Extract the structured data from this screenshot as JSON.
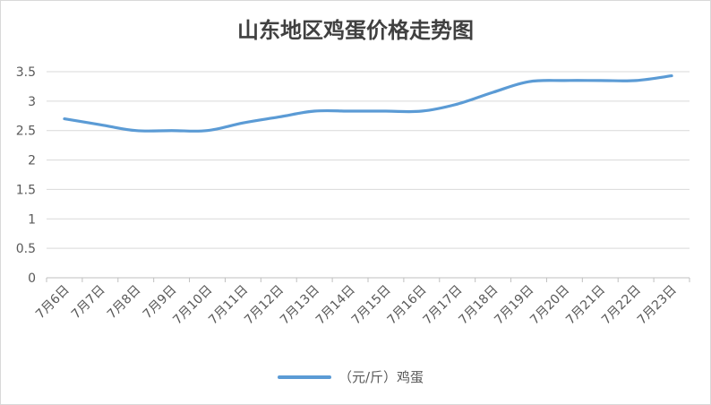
{
  "chart_data": {
    "type": "line",
    "title": "山东地区鸡蛋价格走势图",
    "categories": [
      "7月6日",
      "7月7日",
      "7月8日",
      "7月9日",
      "7月10日",
      "7月11日",
      "7月12日",
      "7月13日",
      "7月14日",
      "7月15日",
      "7月16日",
      "7月17日",
      "7月18日",
      "7月19日",
      "7月20日",
      "7月21日",
      "7月22日",
      "7月23日"
    ],
    "series": [
      {
        "name": "（元/斤）鸡蛋",
        "values": [
          2.7,
          2.6,
          2.5,
          2.5,
          2.5,
          2.63,
          2.73,
          2.83,
          2.83,
          2.83,
          2.83,
          2.95,
          3.15,
          3.33,
          3.35,
          3.35,
          3.35,
          3.43
        ],
        "color": "#5b9bd5"
      }
    ],
    "yticks": [
      "0",
      "0.5",
      "1",
      "1.5",
      "2",
      "2.5",
      "3",
      "3.5"
    ],
    "ylim": [
      0,
      3.5
    ],
    "grid": true,
    "legend": "bottom-center"
  }
}
